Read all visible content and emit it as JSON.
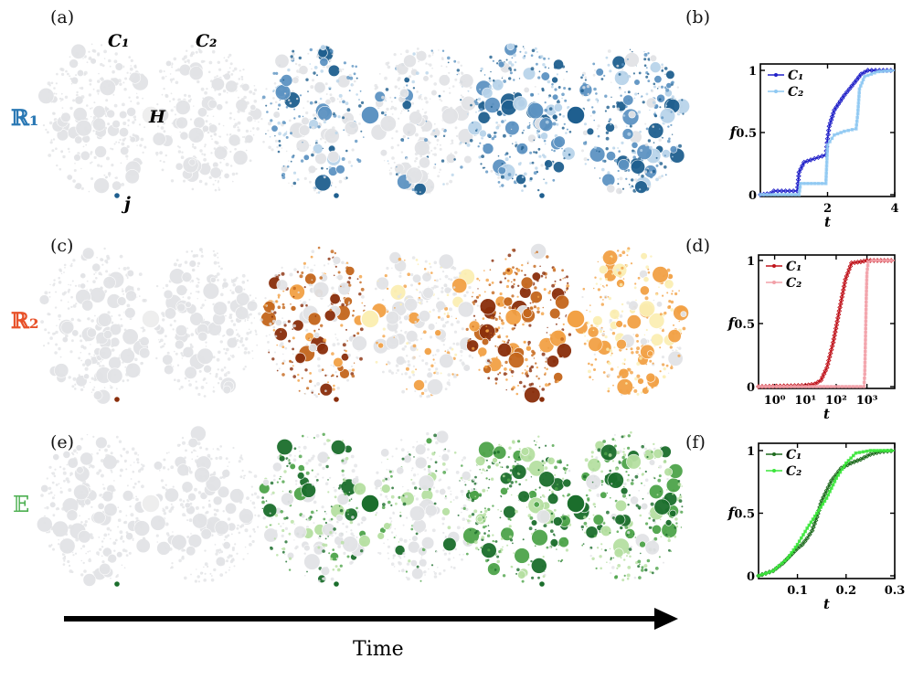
{
  "panel_labels": {
    "a": "(a)",
    "b": "(b)",
    "c": "(c)",
    "d": "(d)",
    "e": "(e)",
    "f": "(f)"
  },
  "annotations": {
    "c1": "C₁",
    "c2": "C₂",
    "hub": "H",
    "node": "j"
  },
  "rows": [
    {
      "label": "ℝ₁",
      "color": "#2a78b4"
    },
    {
      "label": "ℝ₂",
      "color": "#e8522a"
    },
    {
      "label": "𝔼",
      "color": "#4caf50"
    }
  ],
  "time_axis": {
    "label": "Time"
  },
  "colors": {
    "gray": "#e2e3e6",
    "blue_dark": "#1f5f8f",
    "blue_mid": "#5d93c2",
    "blue_light": "#b9d4ea",
    "brown_dark": "#8a2e0b",
    "brown_mid": "#c4661c",
    "orange": "#f2a145",
    "cream": "#fbefb4",
    "green_dark": "#1b6e2c",
    "green_mid": "#4ea44a",
    "green_light": "#b6e0a2"
  },
  "chart_data": [
    {
      "id": "b",
      "type": "line",
      "xlabel": "t",
      "ylabel": "f",
      "xscale": "linear",
      "xlim": [
        0,
        4
      ],
      "ylim": [
        0,
        1
      ],
      "xticks": [
        {
          "v": 2,
          "label": "2"
        },
        {
          "v": 4,
          "label": "4"
        }
      ],
      "yticks": [
        {
          "v": 0,
          "label": "0"
        },
        {
          "v": 0.5,
          "label": "0.5"
        },
        {
          "v": 1,
          "label": "1"
        }
      ],
      "legend": "top-left",
      "series": [
        {
          "name": "C₁",
          "color": "#2020c8",
          "marker": "diamond",
          "points": [
            [
              0,
              0
            ],
            [
              0.3,
              0.01
            ],
            [
              0.4,
              0.03
            ],
            [
              1.1,
              0.03
            ],
            [
              1.15,
              0.18
            ],
            [
              1.3,
              0.26
            ],
            [
              1.5,
              0.28
            ],
            [
              1.95,
              0.32
            ],
            [
              2,
              0.45
            ],
            [
              2.05,
              0.55
            ],
            [
              2.2,
              0.68
            ],
            [
              2.5,
              0.8
            ],
            [
              2.8,
              0.9
            ],
            [
              3.0,
              0.97
            ],
            [
              3.2,
              1
            ],
            [
              4,
              1
            ]
          ]
        },
        {
          "name": "C₂",
          "color": "#8ec8f2",
          "marker": "square",
          "points": [
            [
              0,
              0
            ],
            [
              1.15,
              0
            ],
            [
              1.2,
              0.09
            ],
            [
              1.95,
              0.09
            ],
            [
              2.0,
              0.4
            ],
            [
              2.2,
              0.48
            ],
            [
              2.5,
              0.51
            ],
            [
              2.85,
              0.53
            ],
            [
              2.9,
              0.65
            ],
            [
              2.95,
              0.85
            ],
            [
              3.1,
              0.95
            ],
            [
              3.5,
              0.99
            ],
            [
              4,
              1
            ]
          ]
        }
      ]
    },
    {
      "id": "d",
      "type": "line",
      "xlabel": "t",
      "ylabel": "f",
      "xscale": "log",
      "xlim": [
        0.3,
        8000
      ],
      "ylim": [
        0,
        1
      ],
      "xticks": [
        {
          "v": 1,
          "label": "10⁰"
        },
        {
          "v": 10,
          "label": "10¹"
        },
        {
          "v": 100,
          "label": "10²"
        },
        {
          "v": 1000,
          "label": "10³"
        }
      ],
      "yticks": [
        {
          "v": 0,
          "label": "0"
        },
        {
          "v": 0.5,
          "label": "0.5"
        },
        {
          "v": 1,
          "label": "1"
        }
      ],
      "legend": "top-left",
      "series": [
        {
          "name": "C₁",
          "color": "#c0141c",
          "marker": "diamond",
          "points": [
            [
              0.3,
              0
            ],
            [
              10,
              0.01
            ],
            [
              20,
              0.02
            ],
            [
              32,
              0.05
            ],
            [
              50,
              0.15
            ],
            [
              80,
              0.35
            ],
            [
              126,
              0.6
            ],
            [
              200,
              0.85
            ],
            [
              316,
              0.98
            ],
            [
              630,
              0.99
            ],
            [
              1000,
              1
            ],
            [
              8000,
              1
            ]
          ]
        },
        {
          "name": "C₂",
          "color": "#f2a0a8",
          "marker": "square",
          "points": [
            [
              0.3,
              0
            ],
            [
              800,
              0
            ],
            [
              850,
              0.1
            ],
            [
              900,
              0.4
            ],
            [
              950,
              0.7
            ],
            [
              1000,
              0.9
            ],
            [
              1100,
              0.99
            ],
            [
              1500,
              1
            ],
            [
              8000,
              1
            ]
          ]
        }
      ]
    },
    {
      "id": "f",
      "type": "line",
      "xlabel": "t",
      "ylabel": "f",
      "xscale": "linear",
      "xlim": [
        0.02,
        0.3
      ],
      "ylim": [
        0,
        1
      ],
      "xticks": [
        {
          "v": 0.1,
          "label": "0.1"
        },
        {
          "v": 0.2,
          "label": "0.2"
        },
        {
          "v": 0.3,
          "label": "0.3"
        }
      ],
      "yticks": [
        {
          "v": 0,
          "label": "0"
        },
        {
          "v": 0.5,
          "label": "0.5"
        },
        {
          "v": 1,
          "label": "1"
        }
      ],
      "legend": "top-left",
      "series": [
        {
          "name": "C₁",
          "color": "#1f6b1f",
          "marker": "diamond",
          "points": [
            [
              0.02,
              0
            ],
            [
              0.05,
              0.04
            ],
            [
              0.07,
              0.1
            ],
            [
              0.1,
              0.22
            ],
            [
              0.11,
              0.25
            ],
            [
              0.12,
              0.3
            ],
            [
              0.13,
              0.36
            ],
            [
              0.14,
              0.47
            ],
            [
              0.15,
              0.6
            ],
            [
              0.17,
              0.76
            ],
            [
              0.19,
              0.86
            ],
            [
              0.21,
              0.9
            ],
            [
              0.23,
              0.93
            ],
            [
              0.25,
              0.97
            ],
            [
              0.27,
              0.99
            ],
            [
              0.3,
              1
            ]
          ]
        },
        {
          "name": "C₂",
          "color": "#3be63b",
          "marker": "square",
          "points": [
            [
              0.02,
              0
            ],
            [
              0.05,
              0.04
            ],
            [
              0.08,
              0.14
            ],
            [
              0.1,
              0.25
            ],
            [
              0.12,
              0.38
            ],
            [
              0.14,
              0.5
            ],
            [
              0.16,
              0.62
            ],
            [
              0.18,
              0.78
            ],
            [
              0.2,
              0.9
            ],
            [
              0.22,
              0.98
            ],
            [
              0.25,
              1
            ],
            [
              0.3,
              1
            ]
          ]
        }
      ]
    }
  ]
}
